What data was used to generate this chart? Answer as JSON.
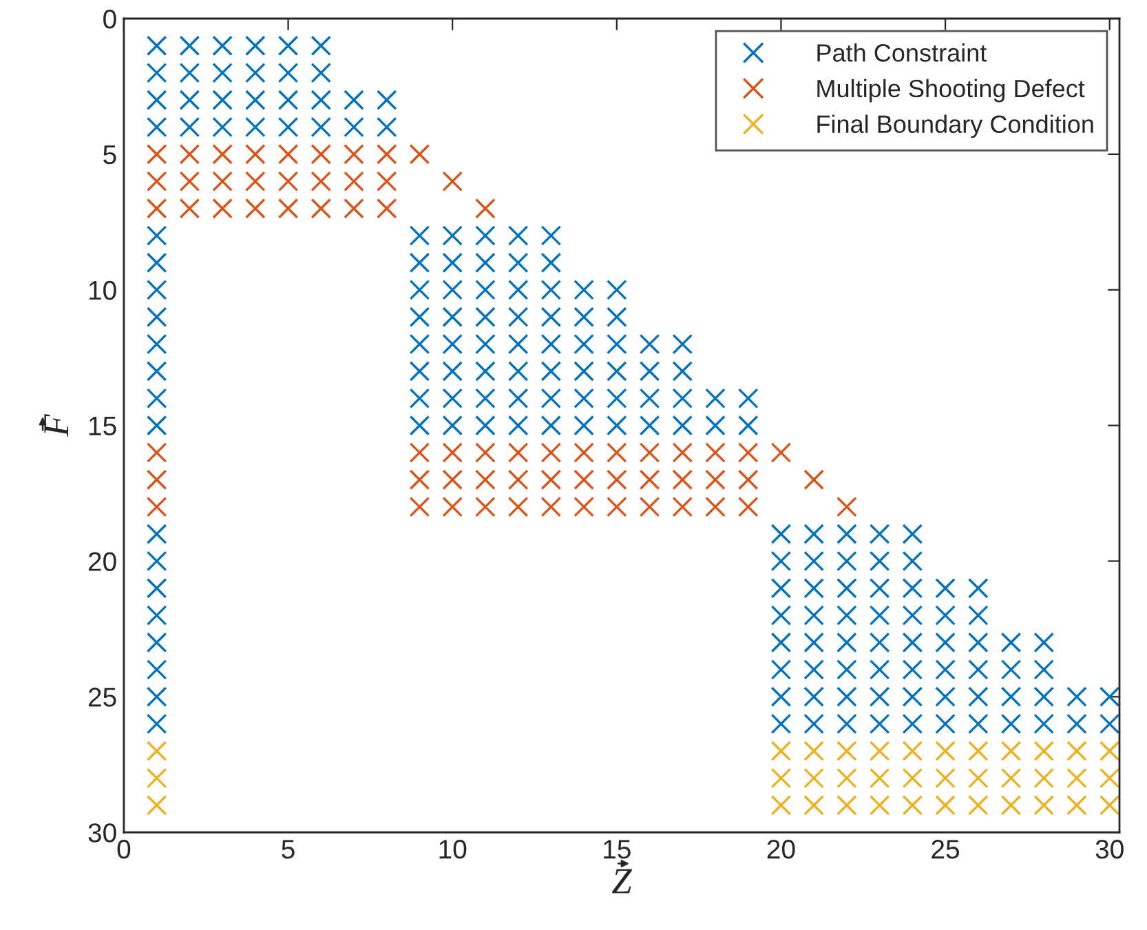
{
  "chart_data": {
    "type": "scatter",
    "xlabel": "Z",
    "ylabel": "F",
    "marker": "cross",
    "legend": "top right",
    "grid": false,
    "xlim": [
      0,
      30.3
    ],
    "ylim": [
      30,
      0
    ],
    "xticks": [
      0,
      5,
      10,
      15,
      20,
      25,
      30
    ],
    "yticks": [
      0,
      5,
      10,
      15,
      20,
      25,
      30
    ],
    "series": [
      {
        "name": "Path Constraint",
        "color": "#0072bd",
        "x": [
          1,
          1,
          1,
          1,
          1,
          1,
          1,
          1,
          1,
          1,
          1,
          1,
          1,
          1,
          1,
          1,
          1,
          1,
          1,
          1,
          2,
          2,
          2,
          2,
          3,
          3,
          3,
          3,
          4,
          4,
          4,
          4,
          5,
          5,
          5,
          5,
          6,
          6,
          6,
          6,
          7,
          7,
          8,
          8,
          9,
          9,
          9,
          9,
          9,
          9,
          9,
          9,
          10,
          10,
          10,
          10,
          10,
          10,
          10,
          10,
          11,
          11,
          11,
          11,
          11,
          11,
          11,
          11,
          12,
          12,
          12,
          12,
          12,
          12,
          12,
          12,
          13,
          13,
          13,
          13,
          13,
          13,
          13,
          13,
          14,
          14,
          14,
          14,
          14,
          14,
          15,
          15,
          15,
          15,
          15,
          15,
          16,
          16,
          16,
          16,
          17,
          17,
          17,
          17,
          18,
          18,
          19,
          19,
          20,
          20,
          20,
          20,
          20,
          20,
          20,
          20,
          21,
          21,
          21,
          21,
          21,
          21,
          21,
          21,
          22,
          22,
          22,
          22,
          22,
          22,
          22,
          22,
          23,
          23,
          23,
          23,
          23,
          23,
          23,
          23,
          24,
          24,
          24,
          24,
          24,
          24,
          24,
          24,
          25,
          25,
          25,
          25,
          25,
          25,
          26,
          26,
          26,
          26,
          26,
          26,
          27,
          27,
          27,
          27,
          28,
          28,
          28,
          28,
          29,
          29,
          30,
          30
        ],
        "values": [
          1,
          2,
          3,
          4,
          8,
          9,
          10,
          11,
          12,
          13,
          14,
          15,
          19,
          20,
          21,
          22,
          23,
          24,
          25,
          26,
          1,
          2,
          3,
          4,
          1,
          2,
          3,
          4,
          1,
          2,
          3,
          4,
          1,
          2,
          3,
          4,
          1,
          2,
          3,
          4,
          3,
          4,
          3,
          4,
          8,
          9,
          10,
          11,
          12,
          13,
          14,
          15,
          8,
          9,
          10,
          11,
          12,
          13,
          14,
          15,
          8,
          9,
          10,
          11,
          12,
          13,
          14,
          15,
          8,
          9,
          10,
          11,
          12,
          13,
          14,
          15,
          8,
          9,
          10,
          11,
          12,
          13,
          14,
          15,
          10,
          11,
          12,
          13,
          14,
          15,
          10,
          11,
          12,
          13,
          14,
          15,
          12,
          13,
          14,
          15,
          12,
          13,
          14,
          15,
          14,
          15,
          14,
          15,
          19,
          20,
          21,
          22,
          23,
          24,
          25,
          26,
          19,
          20,
          21,
          22,
          23,
          24,
          25,
          26,
          19,
          20,
          21,
          22,
          23,
          24,
          25,
          26,
          19,
          20,
          21,
          22,
          23,
          24,
          25,
          26,
          19,
          20,
          21,
          22,
          23,
          24,
          25,
          26,
          21,
          22,
          23,
          24,
          25,
          26,
          21,
          22,
          23,
          24,
          25,
          26,
          23,
          24,
          25,
          26,
          23,
          24,
          25,
          26,
          25,
          26,
          25,
          26
        ]
      },
      {
        "name": "Multiple Shooting Defect",
        "color": "#d95319",
        "x": [
          1,
          1,
          1,
          1,
          1,
          1,
          2,
          2,
          2,
          3,
          3,
          3,
          4,
          4,
          4,
          5,
          5,
          5,
          6,
          6,
          6,
          7,
          7,
          7,
          8,
          8,
          8,
          9,
          9,
          9,
          9,
          10,
          10,
          10,
          10,
          11,
          11,
          11,
          11,
          12,
          12,
          12,
          13,
          13,
          13,
          14,
          14,
          14,
          15,
          15,
          15,
          16,
          16,
          16,
          17,
          17,
          17,
          18,
          18,
          18,
          19,
          19,
          19,
          20,
          21,
          22
        ],
        "values": [
          5,
          6,
          7,
          16,
          17,
          18,
          5,
          6,
          7,
          5,
          6,
          7,
          5,
          6,
          7,
          5,
          6,
          7,
          5,
          6,
          7,
          5,
          6,
          7,
          5,
          6,
          7,
          5,
          16,
          17,
          18,
          6,
          16,
          17,
          18,
          7,
          16,
          17,
          18,
          16,
          17,
          18,
          16,
          17,
          18,
          16,
          17,
          18,
          16,
          17,
          18,
          16,
          17,
          18,
          16,
          17,
          18,
          16,
          17,
          18,
          16,
          17,
          18,
          16,
          17,
          18
        ]
      },
      {
        "name": "Final Boundary Condition",
        "color": "#edb120",
        "x": [
          1,
          1,
          1,
          20,
          20,
          20,
          21,
          21,
          21,
          22,
          22,
          22,
          23,
          23,
          23,
          24,
          24,
          24,
          25,
          25,
          25,
          26,
          26,
          26,
          27,
          27,
          27,
          28,
          28,
          28,
          29,
          29,
          29,
          30,
          30,
          30
        ],
        "values": [
          27,
          28,
          29,
          27,
          28,
          29,
          27,
          28,
          29,
          27,
          28,
          29,
          27,
          28,
          29,
          27,
          28,
          29,
          27,
          28,
          29,
          27,
          28,
          29,
          27,
          28,
          29,
          27,
          28,
          29,
          27,
          28,
          29,
          27,
          28,
          29
        ]
      }
    ]
  }
}
